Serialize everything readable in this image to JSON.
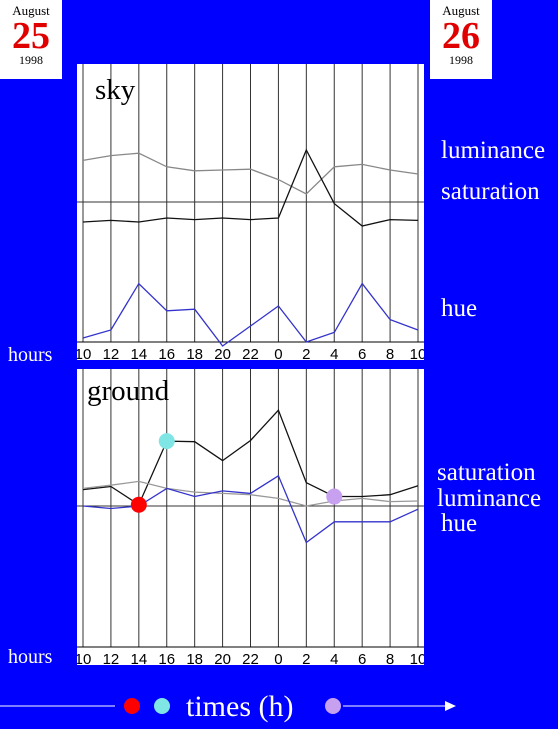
{
  "dates": {
    "start": {
      "month": "August",
      "day": "25",
      "year": "1998"
    },
    "end": {
      "month": "August",
      "day": "26",
      "year": "1998"
    }
  },
  "hours_label": "hours",
  "times_label": "times (h)",
  "colors": {
    "background": "#0000ff",
    "day": "#e00000",
    "marker_red": "#ff0000",
    "marker_cyan": "#7fe5e5",
    "marker_violet": "#c8a0f0"
  },
  "chart_data": [
    {
      "type": "line",
      "title": "sky",
      "x": [
        "10",
        "12",
        "14",
        "16",
        "18",
        "20",
        "22",
        "0",
        "2",
        "4",
        "6",
        "8",
        "10"
      ],
      "grid": true,
      "series": [
        {
          "name": "luminance",
          "color": "#888888",
          "values": [
            0.52,
            0.58,
            0.61,
            0.44,
            0.39,
            0.4,
            0.41,
            0.28,
            0.1,
            0.44,
            0.47,
            0.4,
            0.35
          ]
        },
        {
          "name": "saturation",
          "color": "#111111",
          "values": [
            -0.25,
            -0.23,
            -0.25,
            -0.2,
            -0.22,
            -0.2,
            -0.22,
            -0.2,
            0.65,
            -0.02,
            -0.3,
            -0.22,
            -0.23
          ]
        },
        {
          "name": "hue",
          "color": "#3333cc",
          "values": [
            -1.7,
            -1.6,
            -1.02,
            -1.36,
            -1.34,
            -1.8,
            -1.55,
            -1.3,
            -1.75,
            -1.63,
            -1.02,
            -1.47,
            -1.6
          ]
        }
      ]
    },
    {
      "type": "line",
      "title": "ground",
      "x": [
        "10",
        "12",
        "14",
        "16",
        "18",
        "20",
        "22",
        "0",
        "2",
        "4",
        "6",
        "8",
        "10"
      ],
      "grid": true,
      "series": [
        {
          "name": "saturation",
          "color": "#111111",
          "values": [
            0.26,
            0.31,
            0.02,
            1.03,
            1.02,
            0.72,
            1.04,
            1.52,
            0.37,
            0.15,
            0.15,
            0.18,
            0.32
          ]
        },
        {
          "name": "luminance",
          "color": "#999999",
          "values": [
            0.28,
            0.33,
            0.39,
            0.28,
            0.22,
            0.2,
            0.18,
            0.12,
            0.0,
            0.08,
            0.12,
            0.07,
            0.08
          ]
        },
        {
          "name": "hue",
          "color": "#3333cc",
          "values": [
            0.0,
            -0.04,
            0.0,
            0.28,
            0.15,
            0.24,
            0.2,
            0.48,
            -0.58,
            -0.25,
            -0.25,
            -0.25,
            -0.05
          ]
        }
      ],
      "markers": [
        {
          "x": "14",
          "value": 0.02,
          "color": "#ff0000"
        },
        {
          "x": "16",
          "value": 1.03,
          "color": "#7fe5e5"
        },
        {
          "x": "4",
          "value": 0.15,
          "color": "#c8a0f0"
        }
      ]
    }
  ]
}
